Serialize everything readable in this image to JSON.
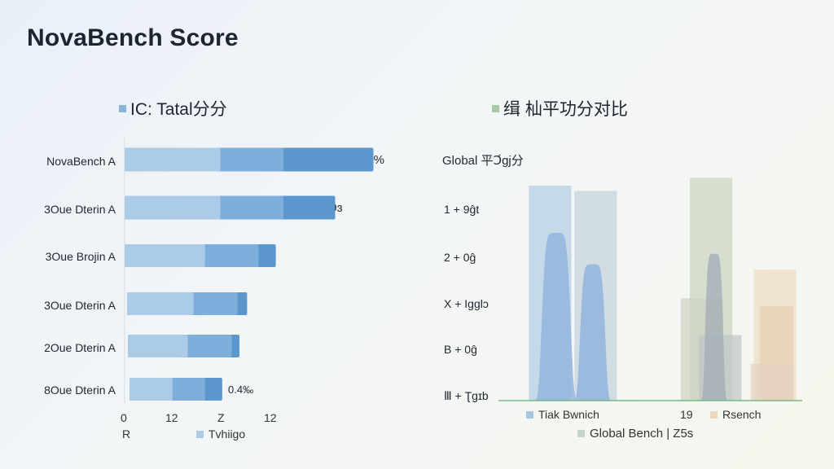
{
  "page_title": "NovaBench Score",
  "colors": {
    "bar_dark": "#5b97cd",
    "bar_mid": "#7eaedb",
    "bar_light": "#abcbe6",
    "legend_blue": "#8fb4d9",
    "legend_green": "#a9c8a6",
    "legend_grey": "#c8d3c9",
    "legend_beige": "#ead8bd",
    "area_blue": "#9dbde0",
    "area_grey": "#c9d4d6",
    "area_khaki": "#ccd6bf",
    "area_beige": "#ecd2b4"
  },
  "chart_data": [
    {
      "type": "bar",
      "orientation": "horizontal",
      "title": "IC: Tatal分分",
      "categories": [
        "NovaBench A",
        "3Oue Dterin A",
        "3Oue Brojin A",
        "3Oue Dterin A",
        "2Oue Dterin A",
        "8Oue Dterin A"
      ],
      "series": [
        {
          "values": [
            5.0,
            5.0,
            4.2,
            3.6,
            3.3,
            2.5
          ]
        },
        {
          "values": [
            8.3,
            8.3,
            7.0,
            5.9,
            5.6,
            4.2
          ]
        },
        {
          "values": [
            13.0,
            11.0,
            7.9,
            6.4,
            6.0,
            5.1
          ]
        }
      ],
      "value_labels": [
        "50%",
        "29ɜ",
        "",
        "",
        "",
        "0.4‰"
      ],
      "x_ticks": [
        "0",
        "12",
        "Z",
        "12"
      ],
      "x_tick_values": [
        0,
        3,
        7,
        9
      ],
      "xlim": [
        0,
        14
      ],
      "legend": [
        {
          "label": "R"
        },
        {
          "label": "Tvhiigo",
          "color": "#abcbe6"
        }
      ]
    },
    {
      "type": "area",
      "title": "缉 杣平功分对比",
      "axis_title": "Global 平Ↄ́gj分",
      "y_labels": [
        "1 + 9ĝt",
        "2 + 0ĝ",
        "X + Iɡɡlɔ",
        "B + 0ĝ",
        "Ⅲ + Ʈgɪb"
      ],
      "blocks": [
        {
          "x0": 0.1,
          "x1": 0.24,
          "y": 0.82,
          "color": "#b4cde5"
        },
        {
          "x0": 0.25,
          "x1": 0.39,
          "y": 0.8,
          "color": "#c3d2dc"
        },
        {
          "x0": 0.63,
          "x1": 0.77,
          "y": 0.85,
          "color": "#c9d4c0"
        },
        {
          "x0": 0.6,
          "x1": 0.74,
          "y": 0.39,
          "color": "#cfd2c3"
        },
        {
          "x0": 0.66,
          "x1": 0.8,
          "y": 0.25,
          "color": "#bfc6c6"
        },
        {
          "x0": 0.84,
          "x1": 0.98,
          "y": 0.5,
          "color": "#eedcc4"
        },
        {
          "x0": 0.86,
          "x1": 0.97,
          "y": 0.36,
          "color": "#e7cdb3"
        },
        {
          "x0": 0.83,
          "x1": 0.97,
          "y": 0.14,
          "color": "#e3d2c1"
        }
      ],
      "peaks": [
        {
          "center": 0.19,
          "half_width": 0.08,
          "height": 0.64,
          "color": "#8fb2dc"
        },
        {
          "center": 0.31,
          "half_width": 0.07,
          "height": 0.52,
          "color": "#8eb1db"
        },
        {
          "center": 0.71,
          "half_width": 0.05,
          "height": 0.56,
          "color": "#a5aeb6"
        }
      ],
      "legend": [
        {
          "label": "Tiak Bwnich",
          "color": "#a7c4e0"
        },
        {
          "label": "19",
          "color": ""
        },
        {
          "label": "Rsench",
          "color": "#ead8bd"
        },
        {
          "label": "Global Bench | Z5s",
          "color": "#c8d3c9"
        }
      ]
    }
  ]
}
